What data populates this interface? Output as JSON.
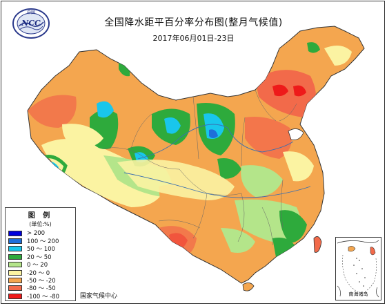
{
  "title": "全国降水距平百分率分布图(整月气候值)",
  "subtitle": "2017年06月01日-23日",
  "logo": {
    "top_text": "中国",
    "center_text": "NCC"
  },
  "legend": {
    "title": "图 例",
    "unit": "(单位:%)",
    "items": [
      {
        "label": "> 200",
        "color": "#0000dd"
      },
      {
        "label": "100 ～ 200",
        "color": "#1e6fd9"
      },
      {
        "label": "50 ～ 100",
        "color": "#19c6ec"
      },
      {
        "label": "20 ～ 50",
        "color": "#2eaa3c"
      },
      {
        "label": "0 ～ 20",
        "color": "#b4e58a"
      },
      {
        "label": "-20 ～ 0",
        "color": "#fbf3a2"
      },
      {
        "label": "-50 ～ -20",
        "color": "#f4a64f"
      },
      {
        "label": "-80 ～ -50",
        "color": "#f26a4a"
      },
      {
        "label": "-100 ～ -80",
        "color": "#ee1a1a"
      }
    ]
  },
  "source": "国家气候中心",
  "inset_label": "南海诸岛",
  "colors": {
    "gt200": "#0000dd",
    "c100_200": "#1e6fd9",
    "c50_100": "#19c6ec",
    "c20_50": "#2eaa3c",
    "c0_20": "#b4e58a",
    "cm20_0": "#fbf3a2",
    "cm50_m20": "#f4a64f",
    "cm80_m50": "#f26a4a",
    "cm100_m80": "#ee1a1a"
  }
}
